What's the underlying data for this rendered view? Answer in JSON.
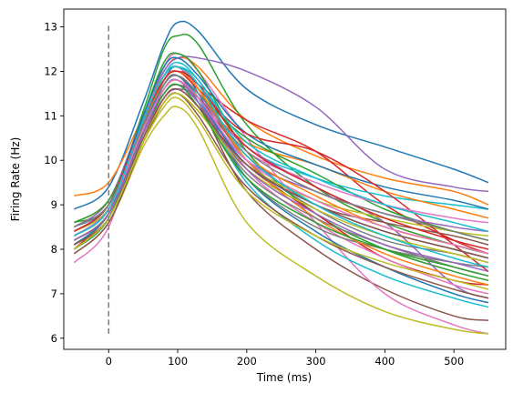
{
  "chart_data": {
    "type": "line",
    "title": "",
    "xlabel": "Time (ms)",
    "ylabel": "Firing Rate (Hz)",
    "xlim": [
      -65,
      575
    ],
    "ylim": [
      5.75,
      13.4
    ],
    "xticks": [
      0,
      100,
      200,
      300,
      400,
      500
    ],
    "yticks": [
      6,
      7,
      8,
      9,
      10,
      11,
      12,
      13
    ],
    "x": [
      -50,
      0,
      50,
      80,
      100,
      130,
      200,
      300,
      400,
      500,
      550
    ],
    "grid": false,
    "legend": "none",
    "stimulus_line": {
      "x": 0,
      "y_range": [
        6.1,
        13.1
      ],
      "color": "#808080",
      "style": "dashed"
    },
    "series": [
      {
        "color": "#1f77b4",
        "values": [
          8.9,
          9.4,
          11.3,
          12.6,
          13.1,
          12.9,
          11.6,
          10.8,
          10.3,
          9.8,
          9.5
        ]
      },
      {
        "color": "#ff7f0e",
        "values": [
          9.2,
          9.5,
          11.0,
          12.0,
          12.3,
          12.1,
          10.9,
          10.1,
          9.6,
          9.3,
          9.0
        ]
      },
      {
        "color": "#2ca02c",
        "values": [
          8.6,
          9.0,
          11.1,
          12.5,
          12.8,
          12.6,
          10.8,
          9.4,
          8.6,
          8.1,
          7.9
        ]
      },
      {
        "color": "#d62728",
        "values": [
          8.4,
          9.0,
          10.9,
          11.9,
          12.1,
          11.7,
          10.9,
          10.2,
          9.0,
          8.2,
          7.9
        ]
      },
      {
        "color": "#9467bd",
        "values": [
          8.5,
          9.1,
          11.0,
          12.0,
          12.3,
          12.3,
          12.0,
          11.2,
          9.8,
          9.4,
          9.3
        ]
      },
      {
        "color": "#8c564b",
        "values": [
          8.1,
          8.7,
          10.6,
          11.7,
          11.9,
          11.3,
          9.3,
          8.0,
          7.1,
          6.5,
          6.4
        ]
      },
      {
        "color": "#e377c2",
        "values": [
          7.7,
          8.5,
          10.9,
          12.1,
          12.4,
          12.0,
          10.5,
          8.6,
          7.0,
          6.3,
          6.1
        ]
      },
      {
        "color": "#7f7f7f",
        "values": [
          8.3,
          8.9,
          10.7,
          11.8,
          12.0,
          11.6,
          10.0,
          8.9,
          8.2,
          7.9,
          7.7
        ]
      },
      {
        "color": "#bcbd22",
        "values": [
          7.9,
          8.6,
          10.3,
          11.0,
          11.2,
          10.7,
          8.6,
          7.4,
          6.6,
          6.2,
          6.1
        ]
      },
      {
        "color": "#17becf",
        "values": [
          8.2,
          8.8,
          10.8,
          11.9,
          12.2,
          11.8,
          10.3,
          9.6,
          9.2,
          9.0,
          8.9
        ]
      },
      {
        "color": "#1f77b4",
        "values": [
          8.0,
          8.7,
          10.8,
          11.8,
          12.1,
          11.5,
          9.6,
          8.4,
          7.6,
          7.0,
          6.8
        ]
      },
      {
        "color": "#ff7f0e",
        "values": [
          8.6,
          9.1,
          10.8,
          11.6,
          11.8,
          11.4,
          10.4,
          9.9,
          9.3,
          8.9,
          8.7
        ]
      },
      {
        "color": "#2ca02c",
        "values": [
          8.3,
          8.9,
          11.0,
          12.2,
          12.4,
          12.0,
          10.2,
          8.8,
          8.0,
          7.5,
          7.3
        ]
      },
      {
        "color": "#d62728",
        "values": [
          8.0,
          8.8,
          10.5,
          11.4,
          11.6,
          11.2,
          9.9,
          8.8,
          7.8,
          7.3,
          7.2
        ]
      },
      {
        "color": "#9467bd",
        "values": [
          8.2,
          8.8,
          10.6,
          11.4,
          11.6,
          11.4,
          10.3,
          9.4,
          8.6,
          7.2,
          6.9
        ]
      },
      {
        "color": "#8c564b",
        "values": [
          8.5,
          9.0,
          10.7,
          11.5,
          11.7,
          11.4,
          10.1,
          9.0,
          8.6,
          8.3,
          8.1
        ]
      },
      {
        "color": "#e377c2",
        "values": [
          8.3,
          8.9,
          10.9,
          11.9,
          12.1,
          11.6,
          9.8,
          8.6,
          7.8,
          7.2,
          7.0
        ]
      },
      {
        "color": "#7f7f7f",
        "values": [
          8.1,
          8.7,
          10.6,
          11.6,
          11.8,
          11.3,
          9.6,
          8.5,
          8.0,
          7.7,
          7.6
        ]
      },
      {
        "color": "#bcbd22",
        "values": [
          8.4,
          8.9,
          10.5,
          11.3,
          11.5,
          11.1,
          9.9,
          9.1,
          8.7,
          8.4,
          8.3
        ]
      },
      {
        "color": "#17becf",
        "values": [
          8.0,
          8.7,
          10.7,
          11.7,
          11.9,
          11.4,
          9.5,
          8.2,
          7.4,
          6.9,
          6.7
        ]
      },
      {
        "color": "#1f77b4",
        "values": [
          8.4,
          9.0,
          11.0,
          12.1,
          12.3,
          11.9,
          10.6,
          9.9,
          9.4,
          9.1,
          8.9
        ]
      },
      {
        "color": "#ff7f0e",
        "values": [
          8.1,
          8.8,
          10.9,
          11.9,
          12.1,
          11.7,
          10.0,
          8.7,
          7.9,
          7.4,
          7.2
        ]
      },
      {
        "color": "#2ca02c",
        "values": [
          8.6,
          9.1,
          10.8,
          11.7,
          11.9,
          11.5,
          10.5,
          9.7,
          8.9,
          8.4,
          8.2
        ]
      },
      {
        "color": "#d62728",
        "values": [
          8.2,
          8.8,
          10.7,
          11.8,
          12.0,
          11.6,
          10.6,
          10.2,
          9.3,
          8.1,
          7.5
        ]
      },
      {
        "color": "#9467bd",
        "values": [
          8.3,
          8.9,
          10.6,
          11.5,
          11.7,
          11.3,
          10.0,
          9.3,
          8.8,
          8.5,
          8.4
        ]
      },
      {
        "color": "#8c564b",
        "values": [
          7.9,
          8.6,
          10.4,
          11.3,
          11.5,
          11.0,
          9.4,
          8.3,
          7.6,
          7.1,
          6.9
        ]
      },
      {
        "color": "#e377c2",
        "values": [
          8.4,
          9.0,
          10.8,
          11.7,
          11.9,
          11.5,
          10.2,
          9.5,
          9.0,
          8.7,
          8.6
        ]
      },
      {
        "color": "#7f7f7f",
        "values": [
          8.0,
          8.7,
          10.6,
          11.6,
          11.8,
          11.3,
          9.7,
          8.7,
          8.1,
          7.6,
          7.4
        ]
      },
      {
        "color": "#bcbd22",
        "values": [
          8.2,
          8.8,
          10.5,
          11.3,
          11.5,
          11.1,
          9.8,
          8.9,
          8.3,
          7.9,
          7.7
        ]
      },
      {
        "color": "#17becf",
        "values": [
          8.5,
          9.0,
          10.9,
          11.9,
          12.1,
          11.8,
          10.4,
          9.6,
          9.0,
          8.6,
          8.4
        ]
      },
      {
        "color": "#1f77b4",
        "values": [
          8.1,
          8.8,
          10.7,
          11.7,
          11.9,
          11.4,
          9.9,
          9.0,
          8.4,
          8.0,
          7.8
        ]
      },
      {
        "color": "#ff7f0e",
        "values": [
          8.3,
          8.9,
          10.8,
          11.8,
          12.0,
          11.6,
          10.1,
          9.2,
          8.5,
          8.1,
          7.9
        ]
      },
      {
        "color": "#2ca02c",
        "values": [
          8.0,
          8.7,
          10.6,
          11.5,
          11.7,
          11.2,
          9.6,
          8.6,
          8.0,
          7.6,
          7.4
        ]
      },
      {
        "color": "#d62728",
        "values": [
          8.4,
          9.0,
          10.9,
          11.8,
          12.0,
          11.7,
          10.3,
          9.4,
          8.7,
          8.2,
          8.0
        ]
      },
      {
        "color": "#9467bd",
        "values": [
          8.2,
          8.8,
          10.6,
          11.6,
          11.8,
          11.3,
          9.8,
          8.8,
          8.1,
          7.7,
          7.5
        ]
      },
      {
        "color": "#8c564b",
        "values": [
          8.1,
          8.7,
          10.5,
          11.4,
          11.6,
          11.2,
          9.9,
          9.0,
          8.4,
          8.0,
          7.8
        ]
      },
      {
        "color": "#e377c2",
        "values": [
          8.3,
          8.9,
          10.7,
          11.6,
          11.8,
          11.4,
          10.0,
          9.1,
          8.5,
          8.1,
          7.9
        ]
      },
      {
        "color": "#7f7f7f",
        "values": [
          8.5,
          9.0,
          10.8,
          11.7,
          11.9,
          11.5,
          10.2,
          9.3,
          8.8,
          8.4,
          8.2
        ]
      },
      {
        "color": "#bcbd22",
        "values": [
          8.0,
          8.7,
          10.4,
          11.2,
          11.4,
          10.9,
          9.3,
          8.3,
          7.7,
          7.3,
          7.1
        ]
      },
      {
        "color": "#17becf",
        "values": [
          8.3,
          8.9,
          10.9,
          11.9,
          12.1,
          11.7,
          10.1,
          9.0,
          8.3,
          7.8,
          7.6
        ]
      }
    ]
  }
}
